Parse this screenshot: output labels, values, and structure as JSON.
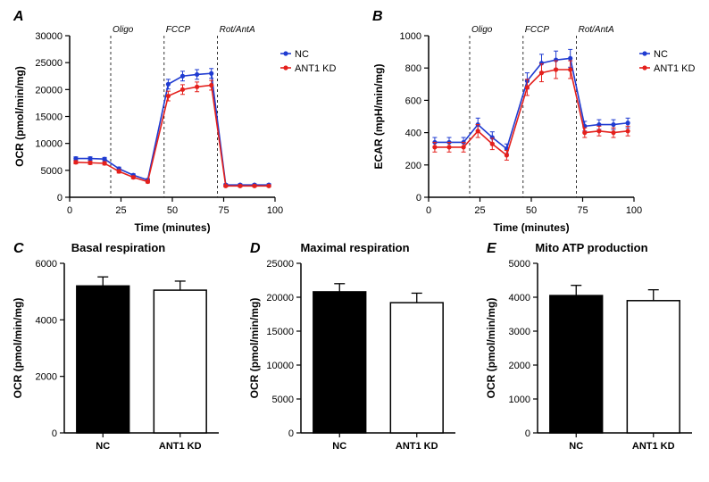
{
  "colors": {
    "nc": "#1f3bd1",
    "ant1": "#e4201c",
    "axis": "#000000",
    "bg": "#ffffff",
    "bar_nc_fill": "#000000",
    "bar_ant1_fill": "#ffffff",
    "bar_border": "#000000",
    "dash": "#000000"
  },
  "fonts": {
    "label": 12,
    "tick": 11,
    "title": 13,
    "panel": 16,
    "legend": 11,
    "inject": 10
  },
  "panelA": {
    "label": "A",
    "xlabel": "Time (minutes)",
    "ylabel": "OCR (pmol/min/mg)",
    "xlim": [
      0,
      100
    ],
    "xticks": [
      0,
      25,
      50,
      75,
      100
    ],
    "ylim": [
      0,
      30000
    ],
    "yticks": [
      0,
      5000,
      10000,
      15000,
      20000,
      25000,
      30000
    ],
    "injections": [
      {
        "x": 20,
        "label": "Oligo"
      },
      {
        "x": 46,
        "label": "FCCP"
      },
      {
        "x": 72,
        "label": "Rot/AntA"
      }
    ],
    "series": [
      {
        "name": "NC",
        "color_key": "nc",
        "x": [
          3,
          10,
          17,
          24,
          31,
          38,
          48,
          55,
          62,
          69,
          76,
          83,
          90,
          97
        ],
        "y": [
          7200,
          7200,
          7100,
          5300,
          4100,
          3200,
          21000,
          22500,
          22800,
          23000,
          2300,
          2300,
          2300,
          2300
        ],
        "err": [
          300,
          300,
          300,
          300,
          250,
          250,
          900,
          900,
          900,
          900,
          200,
          200,
          200,
          200
        ]
      },
      {
        "name": "ANT1 KD",
        "color_key": "ant1",
        "x": [
          3,
          10,
          17,
          24,
          31,
          38,
          48,
          55,
          62,
          69,
          76,
          83,
          90,
          97
        ],
        "y": [
          6500,
          6400,
          6300,
          4800,
          3700,
          2900,
          18800,
          20000,
          20500,
          20800,
          2100,
          2100,
          2100,
          2100
        ],
        "err": [
          300,
          300,
          300,
          300,
          250,
          250,
          900,
          900,
          900,
          900,
          200,
          200,
          200,
          200
        ]
      }
    ],
    "legend": [
      "NC",
      "ANT1 KD"
    ]
  },
  "panelB": {
    "label": "B",
    "xlabel": "Time (minutes)",
    "ylabel": "ECAR (mpH/min/mg)",
    "xlim": [
      0,
      100
    ],
    "xticks": [
      0,
      25,
      50,
      75,
      100
    ],
    "ylim": [
      0,
      1000
    ],
    "yticks": [
      0,
      200,
      400,
      600,
      800,
      1000
    ],
    "injections": [
      {
        "x": 20,
        "label": "Oligo"
      },
      {
        "x": 46,
        "label": "FCCP"
      },
      {
        "x": 72,
        "label": "Rot/AntA"
      }
    ],
    "series": [
      {
        "name": "NC",
        "color_key": "nc",
        "x": [
          3,
          10,
          17,
          24,
          31,
          38,
          48,
          55,
          62,
          69,
          76,
          83,
          90,
          97
        ],
        "y": [
          340,
          340,
          340,
          450,
          370,
          300,
          720,
          830,
          850,
          860,
          440,
          450,
          450,
          460
        ],
        "err": [
          30,
          30,
          30,
          40,
          35,
          30,
          50,
          55,
          55,
          55,
          30,
          30,
          30,
          30
        ]
      },
      {
        "name": "ANT1 KD",
        "color_key": "ant1",
        "x": [
          3,
          10,
          17,
          24,
          31,
          38,
          48,
          55,
          62,
          69,
          76,
          83,
          90,
          97
        ],
        "y": [
          310,
          310,
          310,
          410,
          330,
          260,
          680,
          770,
          790,
          790,
          400,
          410,
          400,
          410
        ],
        "err": [
          30,
          30,
          30,
          40,
          35,
          30,
          50,
          55,
          55,
          55,
          30,
          30,
          30,
          30
        ]
      }
    ],
    "legend": [
      "NC",
      "ANT1 KD"
    ]
  },
  "panelC": {
    "label": "C",
    "title": "Basal respiration",
    "ylabel": "OCR (pmol/min/mg)",
    "ylim": [
      0,
      6000
    ],
    "yticks": [
      0,
      2000,
      4000,
      6000
    ],
    "bars": [
      {
        "label": "NC",
        "value": 5200,
        "err": 320,
        "fill_key": "bar_nc_fill"
      },
      {
        "label": "ANT1 KD",
        "value": 5050,
        "err": 320,
        "fill_key": "bar_ant1_fill"
      }
    ]
  },
  "panelD": {
    "label": "D",
    "title": "Maximal respiration",
    "ylabel": "OCR (pmol/min/mg)",
    "ylim": [
      0,
      25000
    ],
    "yticks": [
      0,
      5000,
      10000,
      15000,
      20000,
      25000
    ],
    "bars": [
      {
        "label": "NC",
        "value": 20800,
        "err": 1200,
        "fill_key": "bar_nc_fill"
      },
      {
        "label": "ANT1 KD",
        "value": 19200,
        "err": 1400,
        "fill_key": "bar_ant1_fill"
      }
    ]
  },
  "panelE": {
    "label": "E",
    "title": "Mito ATP production",
    "ylabel": "OCR (pmol/min/mg)",
    "ylim": [
      0,
      5000
    ],
    "yticks": [
      0,
      1000,
      2000,
      3000,
      4000,
      5000
    ],
    "bars": [
      {
        "label": "NC",
        "value": 4050,
        "err": 300,
        "fill_key": "bar_nc_fill"
      },
      {
        "label": "ANT1 KD",
        "value": 3900,
        "err": 320,
        "fill_key": "bar_ant1_fill"
      }
    ]
  }
}
